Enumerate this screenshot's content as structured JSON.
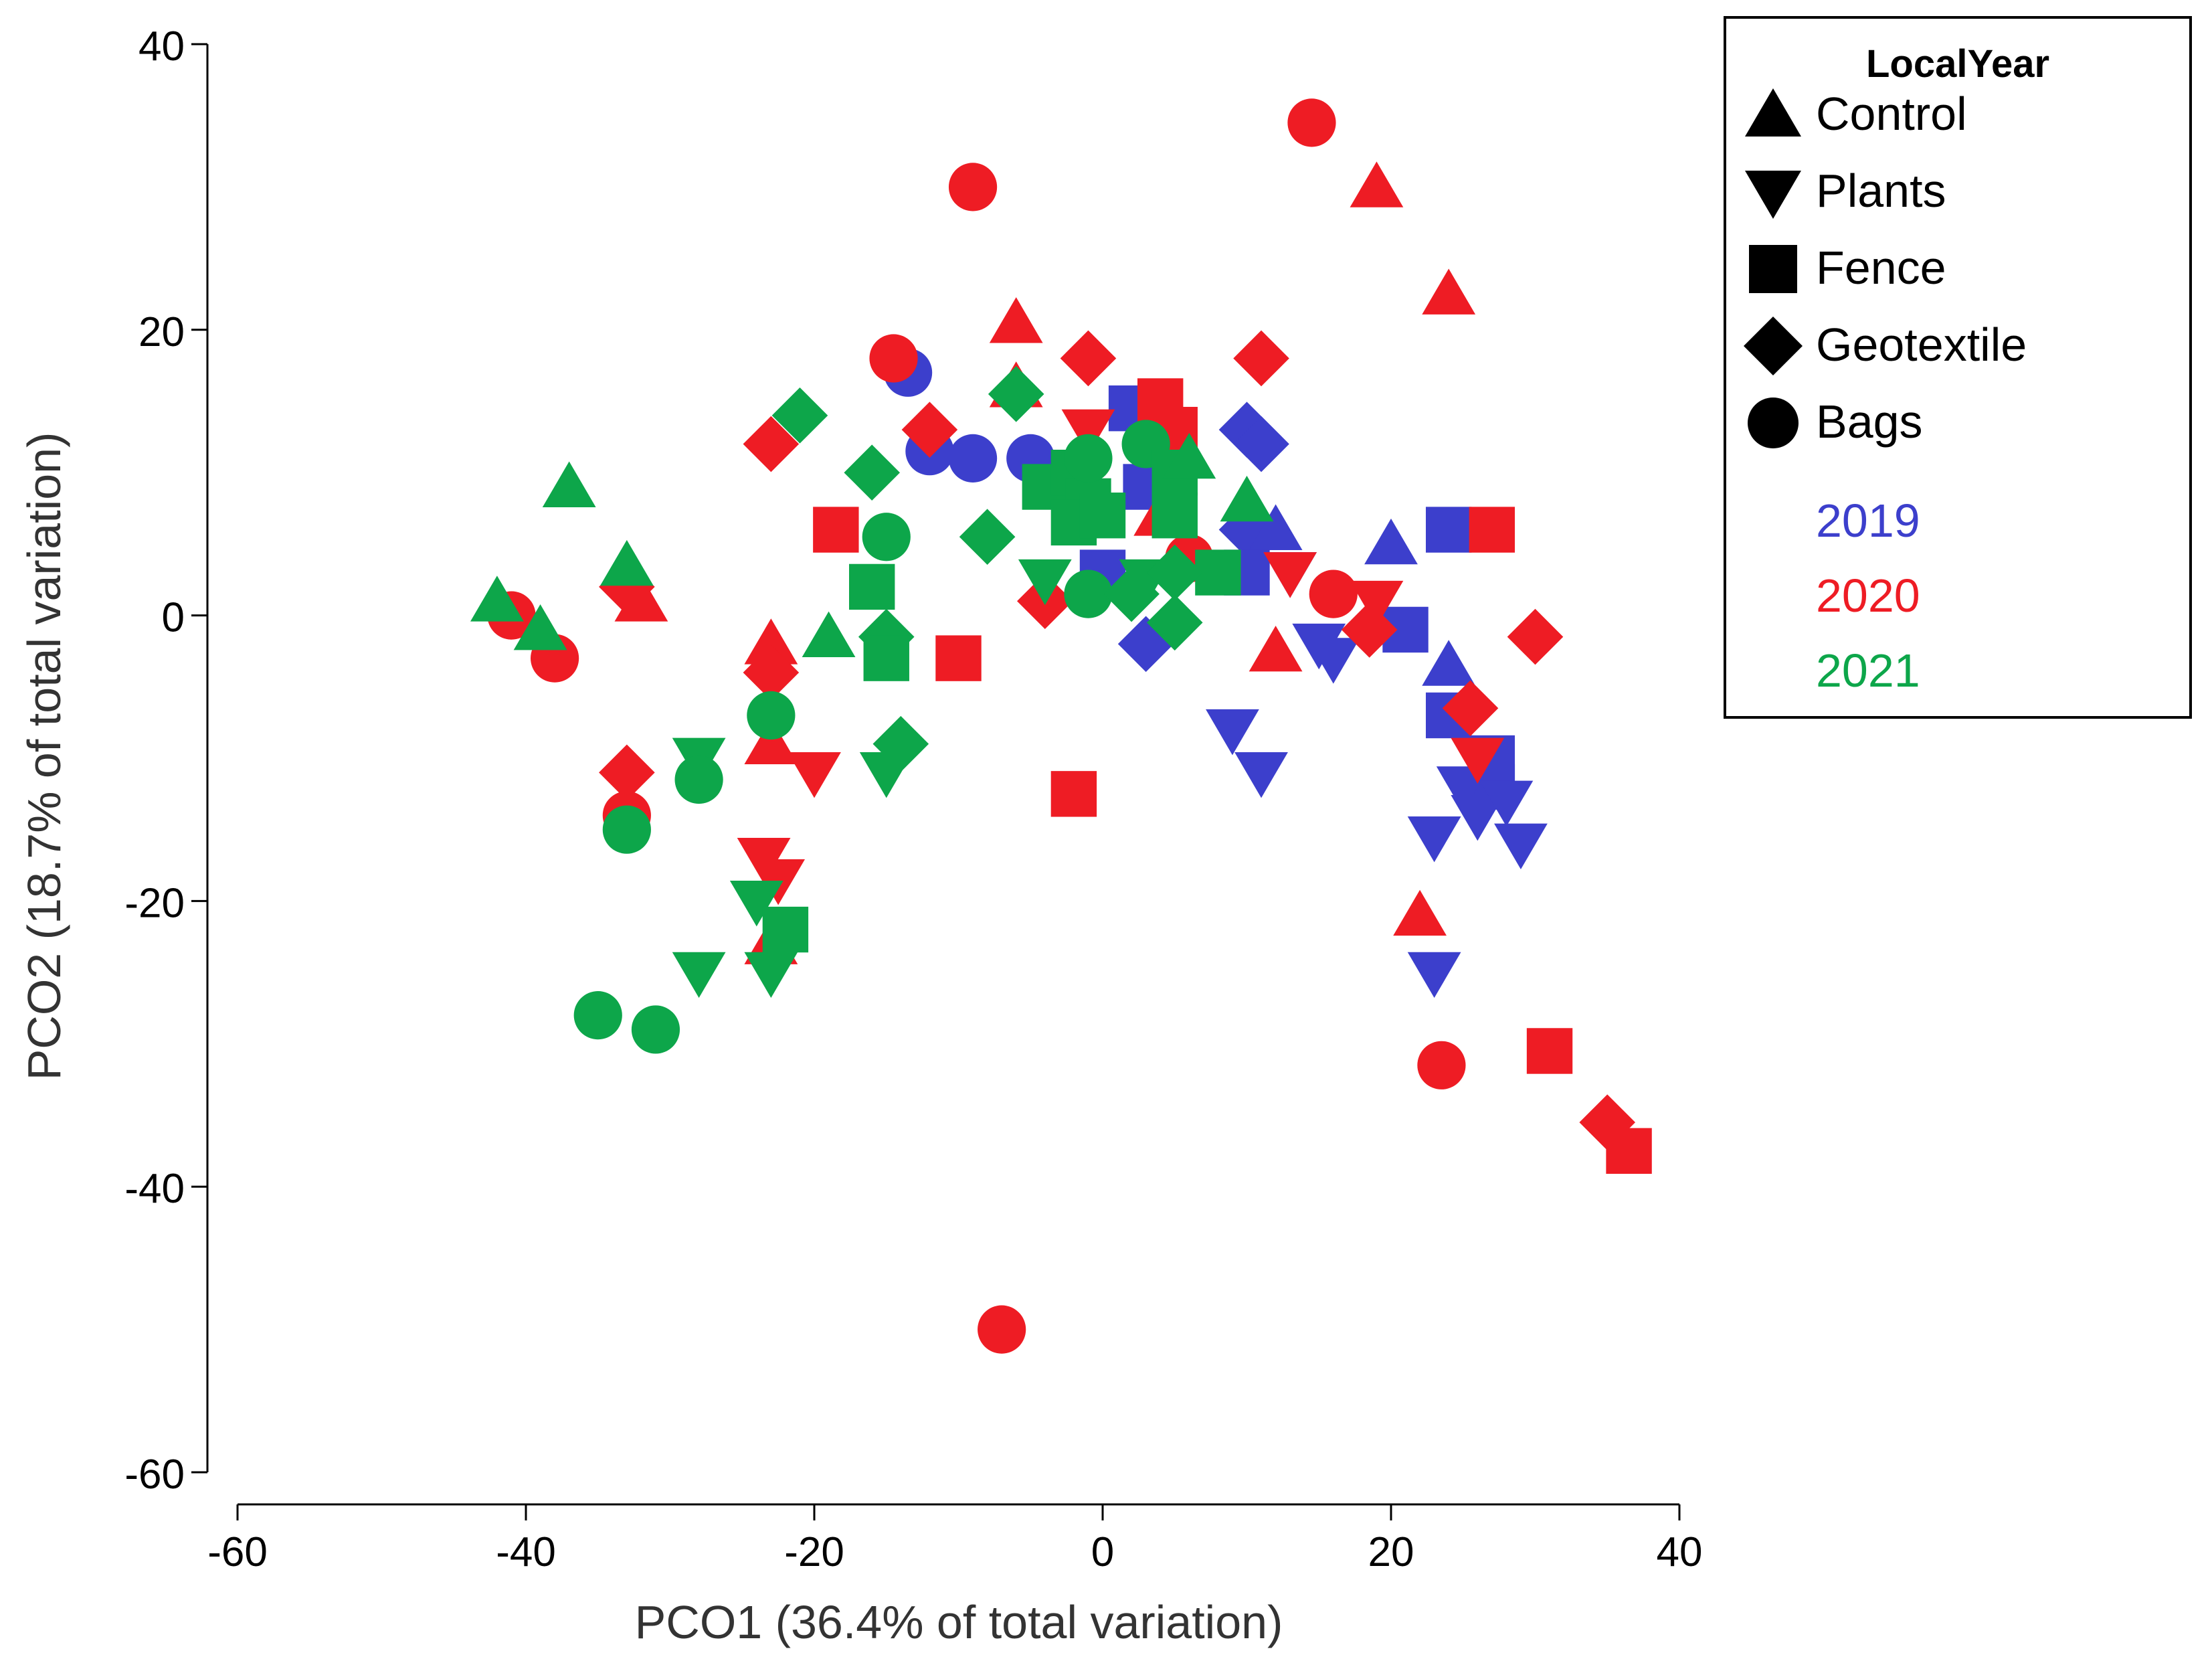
{
  "chart_data": {
    "type": "scatter",
    "title": "",
    "xlabel": "PCO1 (36.4% of total variation)",
    "ylabel": "PCO2 (18.7% of total variation)",
    "xlim": [
      -60,
      40
    ],
    "ylim": [
      -60,
      40
    ],
    "xticks": [
      -60,
      -40,
      -20,
      0,
      20,
      40
    ],
    "yticks": [
      -60,
      -40,
      -20,
      0,
      20,
      40
    ],
    "grid": false,
    "legend": {
      "title": "LocalYear",
      "placement": "top-right outside",
      "shapes": [
        {
          "label": "Control",
          "shape": "triangle-up"
        },
        {
          "label": "Plants",
          "shape": "triangle-down"
        },
        {
          "label": "Fence",
          "shape": "square"
        },
        {
          "label": "Geotextile",
          "shape": "diamond"
        },
        {
          "label": "Bags",
          "shape": "circle"
        }
      ],
      "years": [
        {
          "label": "2019",
          "color": "#3c3fcc"
        },
        {
          "label": "2020",
          "color": "#ee1c24"
        },
        {
          "label": "2021",
          "color": "#0da64a"
        }
      ]
    },
    "series": [
      {
        "name": "2019",
        "color": "#3c3fcc",
        "points": [
          {
            "x": -13.5,
            "y": 17,
            "shape": "circle"
          },
          {
            "x": -12,
            "y": 11.5,
            "shape": "circle"
          },
          {
            "x": -9,
            "y": 11,
            "shape": "circle"
          },
          {
            "x": -5,
            "y": 11,
            "shape": "circle"
          },
          {
            "x": 2,
            "y": 14.5,
            "shape": "square"
          },
          {
            "x": 3,
            "y": 9,
            "shape": "square"
          },
          {
            "x": 0,
            "y": 3,
            "shape": "square"
          },
          {
            "x": 3,
            "y": -2,
            "shape": "diamond"
          },
          {
            "x": 10,
            "y": 13,
            "shape": "diamond"
          },
          {
            "x": 11,
            "y": 12,
            "shape": "diamond"
          },
          {
            "x": 10,
            "y": 6,
            "shape": "diamond"
          },
          {
            "x": 12,
            "y": 6,
            "shape": "triangle-up"
          },
          {
            "x": 10,
            "y": 3,
            "shape": "square"
          },
          {
            "x": 13,
            "y": 3,
            "shape": "triangle-down"
          },
          {
            "x": 9,
            "y": -8,
            "shape": "triangle-down"
          },
          {
            "x": 11,
            "y": -11,
            "shape": "triangle-down"
          },
          {
            "x": 15,
            "y": -2,
            "shape": "triangle-down"
          },
          {
            "x": 16,
            "y": -3,
            "shape": "triangle-down"
          },
          {
            "x": 20,
            "y": 5,
            "shape": "triangle-up"
          },
          {
            "x": 21,
            "y": -1,
            "shape": "square"
          },
          {
            "x": 24,
            "y": 6,
            "shape": "square"
          },
          {
            "x": 24,
            "y": -3.5,
            "shape": "triangle-up"
          },
          {
            "x": 24,
            "y": -7,
            "shape": "square"
          },
          {
            "x": 27,
            "y": -10,
            "shape": "square"
          },
          {
            "x": 27,
            "y": -12,
            "shape": "square"
          },
          {
            "x": 25,
            "y": -12,
            "shape": "triangle-down"
          },
          {
            "x": 26,
            "y": -14,
            "shape": "triangle-down"
          },
          {
            "x": 28,
            "y": -13,
            "shape": "triangle-down"
          },
          {
            "x": 29,
            "y": -16,
            "shape": "triangle-down"
          },
          {
            "x": 23,
            "y": -15.5,
            "shape": "triangle-down"
          },
          {
            "x": 23,
            "y": -25,
            "shape": "triangle-down"
          }
        ]
      },
      {
        "name": "2020",
        "color": "#ee1c24",
        "points": [
          {
            "x": 14.5,
            "y": 34.5,
            "shape": "circle"
          },
          {
            "x": -9,
            "y": 30,
            "shape": "circle"
          },
          {
            "x": 19,
            "y": 30,
            "shape": "triangle-up"
          },
          {
            "x": 24,
            "y": 22.5,
            "shape": "triangle-up"
          },
          {
            "x": -6,
            "y": 20.5,
            "shape": "triangle-up"
          },
          {
            "x": -14.5,
            "y": 18,
            "shape": "circle"
          },
          {
            "x": -1,
            "y": 18,
            "shape": "diamond"
          },
          {
            "x": 11,
            "y": 18,
            "shape": "diamond"
          },
          {
            "x": -23,
            "y": 12,
            "shape": "diamond"
          },
          {
            "x": -12,
            "y": 13,
            "shape": "diamond"
          },
          {
            "x": -6,
            "y": 16,
            "shape": "triangle-up"
          },
          {
            "x": 4,
            "y": 15,
            "shape": "square"
          },
          {
            "x": 5,
            "y": 13,
            "shape": "square"
          },
          {
            "x": -1,
            "y": 13,
            "shape": "triangle-down"
          },
          {
            "x": 4,
            "y": 7,
            "shape": "triangle-up"
          },
          {
            "x": 6,
            "y": 4,
            "shape": "circle"
          },
          {
            "x": -18.5,
            "y": 6,
            "shape": "square"
          },
          {
            "x": 27,
            "y": 6,
            "shape": "square"
          },
          {
            "x": -33,
            "y": 2,
            "shape": "diamond"
          },
          {
            "x": -32,
            "y": 1,
            "shape": "triangle-up"
          },
          {
            "x": -41,
            "y": 0,
            "shape": "circle"
          },
          {
            "x": -38,
            "y": -3,
            "shape": "circle"
          },
          {
            "x": -4,
            "y": 1,
            "shape": "diamond"
          },
          {
            "x": 13,
            "y": 3,
            "shape": "triangle-down"
          },
          {
            "x": 16,
            "y": 1.5,
            "shape": "circle"
          },
          {
            "x": 19,
            "y": 1,
            "shape": "triangle-down"
          },
          {
            "x": 18.5,
            "y": -1,
            "shape": "diamond"
          },
          {
            "x": 30,
            "y": -1.5,
            "shape": "diamond"
          },
          {
            "x": 12,
            "y": -2.5,
            "shape": "triangle-up"
          },
          {
            "x": -10,
            "y": -3,
            "shape": "square"
          },
          {
            "x": -23,
            "y": -2,
            "shape": "triangle-up"
          },
          {
            "x": -23,
            "y": -4,
            "shape": "diamond"
          },
          {
            "x": -23,
            "y": -9,
            "shape": "triangle-up"
          },
          {
            "x": -20,
            "y": -11,
            "shape": "triangle-down"
          },
          {
            "x": -33,
            "y": -11,
            "shape": "diamond"
          },
          {
            "x": -33,
            "y": -14,
            "shape": "circle"
          },
          {
            "x": -2,
            "y": -12.5,
            "shape": "square"
          },
          {
            "x": 25.5,
            "y": -6.5,
            "shape": "diamond"
          },
          {
            "x": 26,
            "y": -10,
            "shape": "triangle-down"
          },
          {
            "x": -23.5,
            "y": -17,
            "shape": "triangle-down"
          },
          {
            "x": -22.5,
            "y": -18.5,
            "shape": "triangle-down"
          },
          {
            "x": -23,
            "y": -23,
            "shape": "triangle-up"
          },
          {
            "x": 22,
            "y": -21,
            "shape": "triangle-up"
          },
          {
            "x": 23.5,
            "y": -31.5,
            "shape": "circle"
          },
          {
            "x": 31,
            "y": -30.5,
            "shape": "square"
          },
          {
            "x": 35,
            "y": -35.5,
            "shape": "diamond"
          },
          {
            "x": 36.5,
            "y": -37.5,
            "shape": "square"
          },
          {
            "x": -7,
            "y": -50,
            "shape": "circle"
          }
        ]
      },
      {
        "name": "2021",
        "color": "#0da64a",
        "points": [
          {
            "x": -21,
            "y": 14,
            "shape": "diamond"
          },
          {
            "x": -6,
            "y": 15.5,
            "shape": "diamond"
          },
          {
            "x": -16,
            "y": 10,
            "shape": "diamond"
          },
          {
            "x": -37,
            "y": 9,
            "shape": "triangle-up"
          },
          {
            "x": -15,
            "y": 5.5,
            "shape": "circle"
          },
          {
            "x": -8,
            "y": 5.5,
            "shape": "diamond"
          },
          {
            "x": -33,
            "y": 3.5,
            "shape": "triangle-up"
          },
          {
            "x": -42,
            "y": 1,
            "shape": "triangle-up"
          },
          {
            "x": -39,
            "y": -1,
            "shape": "triangle-up"
          },
          {
            "x": -16,
            "y": 2,
            "shape": "square"
          },
          {
            "x": -15,
            "y": -1.5,
            "shape": "diamond"
          },
          {
            "x": -15,
            "y": -3,
            "shape": "square"
          },
          {
            "x": -19,
            "y": -1.5,
            "shape": "triangle-up"
          },
          {
            "x": -4,
            "y": 9,
            "shape": "square"
          },
          {
            "x": -2,
            "y": 10,
            "shape": "square"
          },
          {
            "x": -1,
            "y": 8,
            "shape": "square"
          },
          {
            "x": -2,
            "y": 6.5,
            "shape": "square"
          },
          {
            "x": 0,
            "y": 7,
            "shape": "square"
          },
          {
            "x": -1,
            "y": 11,
            "shape": "circle"
          },
          {
            "x": 3,
            "y": 12,
            "shape": "circle"
          },
          {
            "x": 5,
            "y": 10,
            "shape": "square"
          },
          {
            "x": 6,
            "y": 11,
            "shape": "triangle-up"
          },
          {
            "x": 5,
            "y": 7,
            "shape": "square"
          },
          {
            "x": 10,
            "y": 8,
            "shape": "triangle-up"
          },
          {
            "x": 8,
            "y": 3,
            "shape": "square"
          },
          {
            "x": -4,
            "y": 2.5,
            "shape": "triangle-down"
          },
          {
            "x": -1,
            "y": 1.5,
            "shape": "circle"
          },
          {
            "x": 2,
            "y": 1.5,
            "shape": "diamond"
          },
          {
            "x": 3,
            "y": 2.5,
            "shape": "triangle-down"
          },
          {
            "x": 5,
            "y": 3,
            "shape": "diamond"
          },
          {
            "x": 5,
            "y": -0.5,
            "shape": "diamond"
          },
          {
            "x": -23,
            "y": -7,
            "shape": "circle"
          },
          {
            "x": -28,
            "y": -10,
            "shape": "triangle-down"
          },
          {
            "x": -28,
            "y": -11.5,
            "shape": "circle"
          },
          {
            "x": -14,
            "y": -9,
            "shape": "diamond"
          },
          {
            "x": -15,
            "y": -11,
            "shape": "triangle-down"
          },
          {
            "x": -33,
            "y": -15,
            "shape": "circle"
          },
          {
            "x": -24,
            "y": -20,
            "shape": "triangle-down"
          },
          {
            "x": -22,
            "y": -22,
            "shape": "square"
          },
          {
            "x": -28,
            "y": -25,
            "shape": "triangle-down"
          },
          {
            "x": -23,
            "y": -25,
            "shape": "triangle-down"
          },
          {
            "x": -35,
            "y": -28,
            "shape": "circle"
          },
          {
            "x": -31,
            "y": -29,
            "shape": "circle"
          }
        ]
      }
    ]
  }
}
